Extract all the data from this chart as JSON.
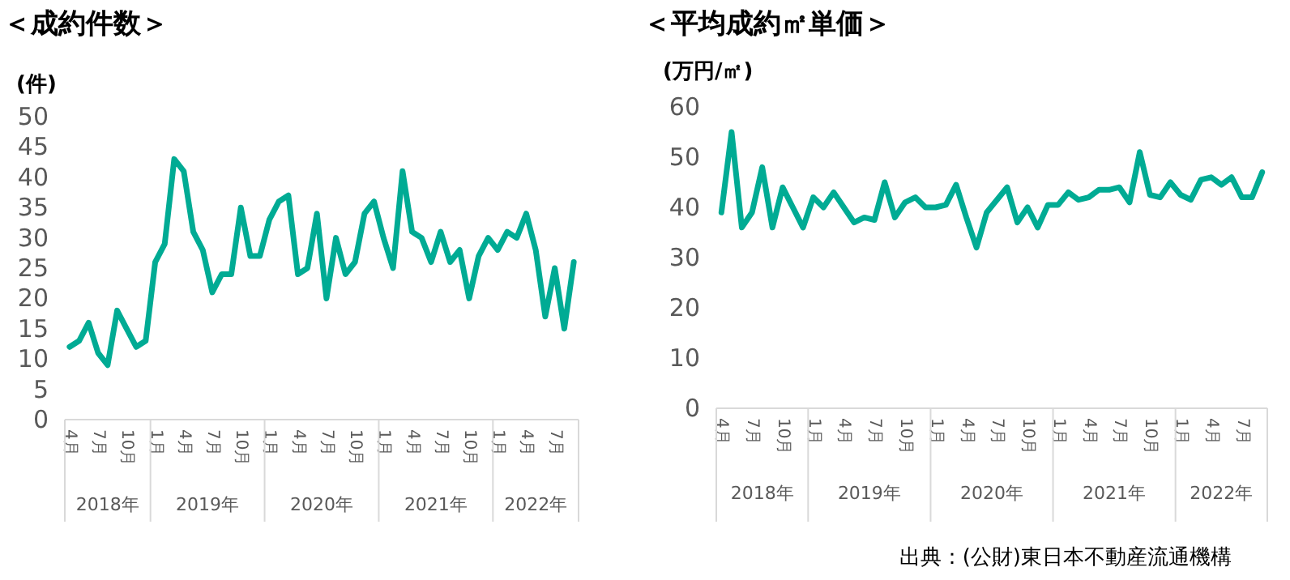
{
  "chart_data": [
    {
      "type": "line",
      "title": "＜成約件数＞",
      "ylabel": "(件)",
      "categories": [
        "4月",
        null,
        null,
        "7月",
        null,
        null,
        "10月",
        null,
        null,
        "1月",
        null,
        null,
        "4月",
        null,
        null,
        "7月",
        null,
        null,
        "10月",
        null,
        null,
        "1月",
        null,
        null,
        "4月",
        null,
        null,
        "7月",
        null,
        null,
        "10月",
        null,
        null,
        "1月",
        null,
        null,
        "4月",
        null,
        null,
        "7月",
        null,
        null,
        "10月",
        null,
        null,
        "1月",
        null,
        null,
        "4月",
        null,
        null,
        "7月",
        null,
        null
      ],
      "series": [
        {
          "color": "#00ab94",
          "values": [
            12,
            13,
            16,
            11,
            9,
            18,
            15,
            12,
            13,
            26,
            29,
            43,
            41,
            31,
            28,
            21,
            24,
            24,
            35,
            27,
            27,
            33,
            36,
            37,
            24,
            25,
            34,
            20,
            30,
            24,
            26,
            34,
            36,
            30,
            25,
            41,
            31,
            30,
            26,
            31,
            26,
            28,
            20,
            27,
            30,
            28,
            31,
            30,
            34,
            28,
            17,
            25,
            15,
            26
          ]
        }
      ],
      "ylim": [
        0,
        50
      ],
      "yticks": [
        0,
        5,
        10,
        15,
        20,
        25,
        30,
        35,
        40,
        45,
        50
      ],
      "marker": "none",
      "line_style": "solid",
      "annotations": [
        "2018年",
        "2019年",
        "2020年",
        "2021年",
        "2022年"
      ]
    },
    {
      "type": "line",
      "title": "＜平均成約㎡単価＞",
      "ylabel": "(万円/㎡)",
      "categories": [
        "4月",
        null,
        null,
        "7月",
        null,
        null,
        "10月",
        null,
        null,
        "1月",
        null,
        null,
        "4月",
        null,
        null,
        "7月",
        null,
        null,
        "10月",
        null,
        null,
        "1月",
        null,
        null,
        "4月",
        null,
        null,
        "7月",
        null,
        null,
        "10月",
        null,
        null,
        "1月",
        null,
        null,
        "4月",
        null,
        null,
        "7月",
        null,
        null,
        "10月",
        null,
        null,
        "1月",
        null,
        null,
        "4月",
        null,
        null,
        "7月",
        null,
        null
      ],
      "series": [
        {
          "color": "#00ab94",
          "values": [
            39,
            55,
            36,
            39,
            48,
            36,
            44,
            40,
            36,
            42,
            40,
            43,
            40,
            37,
            38,
            37.5,
            45,
            38,
            41,
            42,
            40,
            40,
            40.5,
            44.5,
            38,
            32,
            39,
            41.5,
            44,
            37,
            40,
            36,
            40.5,
            40.5,
            43,
            41.5,
            42,
            43.5,
            43.5,
            44,
            41,
            51,
            42.5,
            42,
            45,
            42.5,
            41.5,
            45.5,
            46,
            44.5,
            46,
            42,
            42,
            47
          ]
        }
      ],
      "ylim": [
        0,
        60
      ],
      "yticks": [
        0,
        10,
        20,
        30,
        40,
        50,
        60
      ],
      "marker": "none",
      "line_style": "solid",
      "annotations": [
        "2018年",
        "2019年",
        "2020年",
        "2021年",
        "2022年",
        "出典：(公財)東日本不動産流通機構"
      ]
    }
  ]
}
